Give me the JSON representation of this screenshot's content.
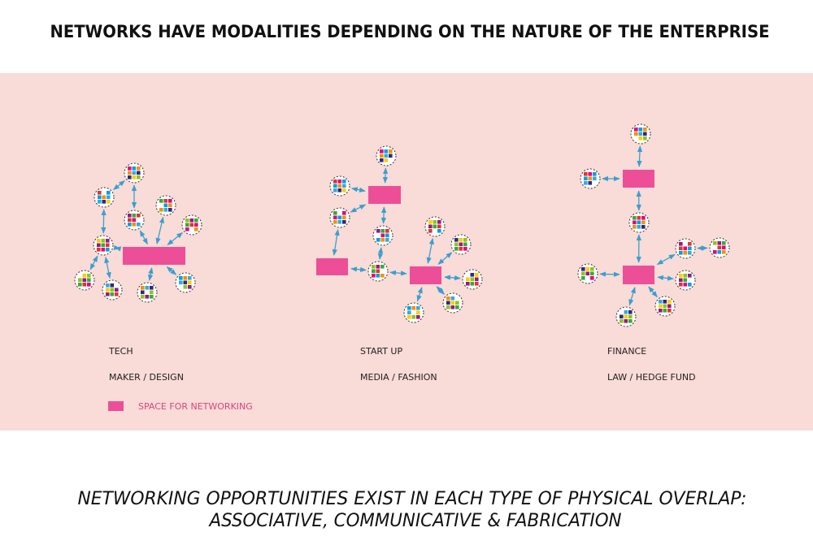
{
  "title": "NETWORKS HAVE MODALITIES DEPENDING ON THE NATURE OF THE ENTERPRISE",
  "diagrams": [
    {
      "label": "TECH",
      "sublabel": "MAKER / DESIGN"
    },
    {
      "label": "START UP",
      "sublabel": "MEDIA / FASHION"
    },
    {
      "label": "FINANCE",
      "sublabel": "LAW  /  HEDGE FUND"
    }
  ],
  "legend": {
    "label": "SPACE  FOR  NETWORKING"
  },
  "footer": {
    "lines": [
      "NETWORKING OPPORTUNITIES EXIST IN EACH TYPE OF PHYSICAL OVERLAP:",
      "ASSOCIATIVE, COMMUNICATIVE & FABRICATION"
    ]
  }
}
